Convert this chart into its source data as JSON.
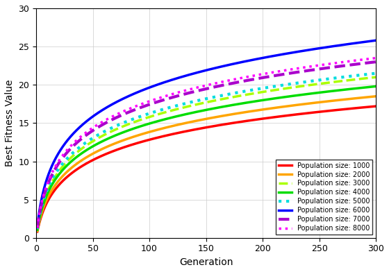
{
  "title": "",
  "xlabel": "Generation",
  "ylabel": "Best Fitness Value",
  "xlim": [
    0,
    300
  ],
  "ylim": [
    0,
    30
  ],
  "xticks": [
    0,
    50,
    100,
    150,
    200,
    250,
    300
  ],
  "yticks": [
    0,
    5,
    10,
    15,
    20,
    25,
    30
  ],
  "series": [
    {
      "label": "Population size: 1000",
      "color": "#ff0000",
      "linestyle": "-",
      "linewidth": 2.5,
      "plateau": 17.2,
      "rise_rate": 0.22,
      "shape": "log"
    },
    {
      "label": "Population size: 2000",
      "color": "#ffa500",
      "linestyle": "-",
      "linewidth": 2.5,
      "plateau": 18.5,
      "rise_rate": 0.23,
      "shape": "log"
    },
    {
      "label": "Population size: 3000",
      "color": "#aaff00",
      "linestyle": "--",
      "linewidth": 2.5,
      "plateau": 21.0,
      "rise_rate": 0.25,
      "shape": "log"
    },
    {
      "label": "Population size: 4000",
      "color": "#00dd00",
      "linestyle": "-",
      "linewidth": 2.5,
      "plateau": 19.8,
      "rise_rate": 0.26,
      "shape": "log"
    },
    {
      "label": "Population size: 5000",
      "color": "#00dddd",
      "linestyle": ":",
      "linewidth": 3.0,
      "plateau": 21.5,
      "rise_rate": 0.27,
      "shape": "log"
    },
    {
      "label": "Population size: 6000",
      "color": "#0000ff",
      "linestyle": "-",
      "linewidth": 2.5,
      "plateau": 25.8,
      "rise_rate": 0.3,
      "shape": "log"
    },
    {
      "label": "Population size: 7000",
      "color": "#aa00cc",
      "linestyle": "--",
      "linewidth": 3.0,
      "plateau": 23.0,
      "rise_rate": 0.28,
      "shape": "log"
    },
    {
      "label": "Population size: 8000",
      "color": "#ff00ff",
      "linestyle": ":",
      "linewidth": 2.5,
      "plateau": 23.5,
      "rise_rate": 0.29,
      "shape": "log"
    }
  ],
  "legend_loc": "lower right",
  "grid": true,
  "background_color": "#ffffff"
}
